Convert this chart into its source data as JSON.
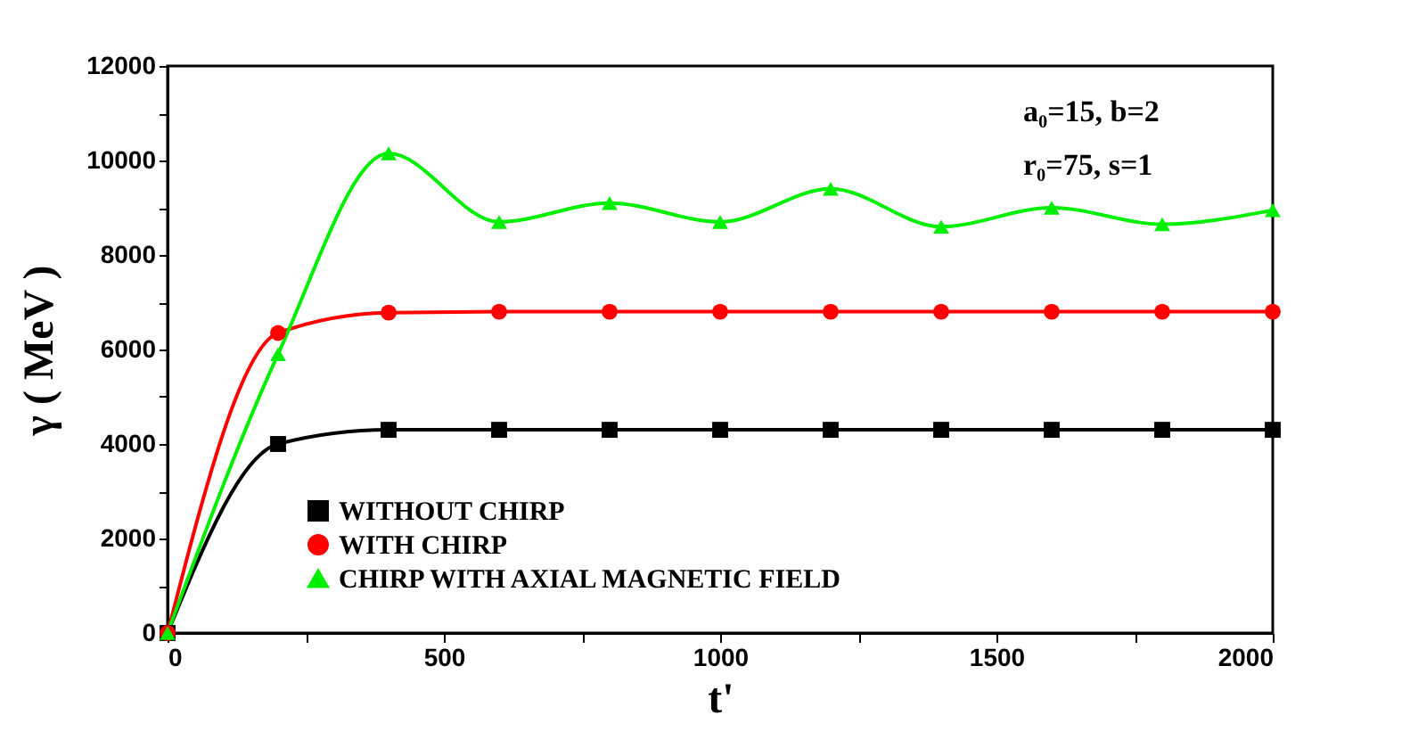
{
  "chart_data": {
    "type": "line",
    "xlabel": "t'",
    "ylabel": "γ ( MeV )",
    "x": [
      0,
      200,
      400,
      600,
      800,
      1000,
      1200,
      1400,
      1600,
      1800,
      2000
    ],
    "series": [
      {
        "name": "WITHOUT  CHIRP",
        "color": "#000000",
        "marker": "square",
        "values": [
          0,
          4000,
          4300,
          4300,
          4300,
          4300,
          4300,
          4300,
          4300,
          4300,
          4300
        ]
      },
      {
        "name": "WITH  CHIRP",
        "color": "#ff0000",
        "marker": "circle",
        "values": [
          0,
          6350,
          6780,
          6800,
          6800,
          6800,
          6800,
          6800,
          6800,
          6800,
          6800
        ]
      },
      {
        "name": "CHIRP WITH AXIAL MAGNETIC FIELD",
        "color": "#00ee00",
        "marker": "triangle",
        "values": [
          0,
          5900,
          10150,
          8700,
          9100,
          8700,
          9400,
          8600,
          9000,
          8650,
          8950
        ]
      }
    ],
    "xlim": [
      0,
      2000
    ],
    "xticks": [
      0,
      {
        "value": 250,
        "label": null
      },
      500,
      {
        "value": 750,
        "label": null
      },
      1000,
      {
        "value": 1250,
        "label": null
      },
      1500,
      {
        "value": 1750,
        "label": null
      },
      2000
    ],
    "ylim": [
      0,
      12000
    ],
    "yticks": [
      0,
      {
        "value": 1000,
        "label": null
      },
      2000,
      {
        "value": 3000,
        "label": null
      },
      4000,
      {
        "value": 5000,
        "label": null
      },
      6000,
      {
        "value": 7000,
        "label": null
      },
      8000,
      {
        "value": 9000,
        "label": null
      },
      10000,
      {
        "value": 11000,
        "label": null
      },
      12000
    ],
    "annotations": [
      "a₀=15,   b=2",
      "r₀=75,  s=1"
    ],
    "legend": "bottom left",
    "grid": false
  }
}
